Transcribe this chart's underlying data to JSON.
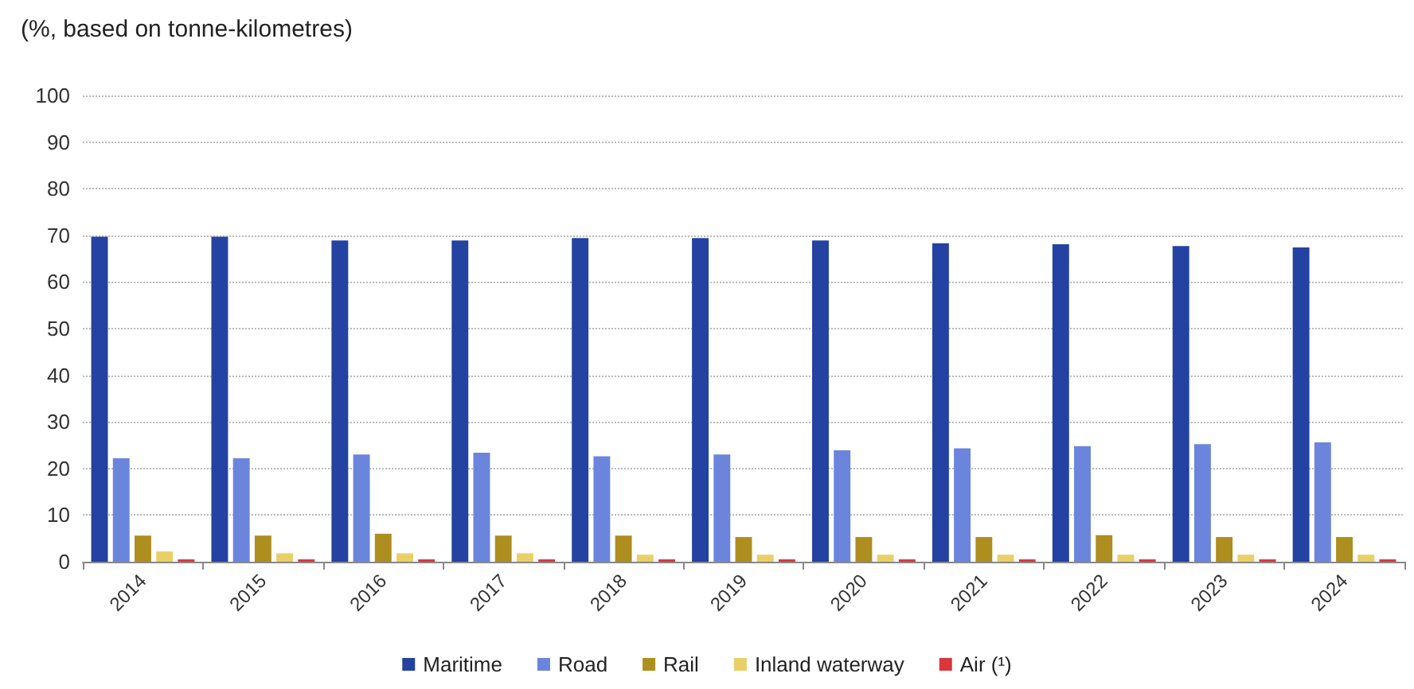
{
  "chart_data": {
    "type": "bar",
    "title": "(%, based on tonne-kilometres)",
    "categories": [
      "2014",
      "2015",
      "2016",
      "2017",
      "2018",
      "2019",
      "2020",
      "2021",
      "2022",
      "2023",
      "2024"
    ],
    "series": [
      {
        "name": "Maritime",
        "color": "#2342a2",
        "values": [
          69.7,
          69.7,
          68.9,
          68.9,
          69.4,
          69.4,
          68.9,
          68.3,
          68.1,
          67.7,
          67.4
        ]
      },
      {
        "name": "Road",
        "color": "#6b85dd",
        "values": [
          22.2,
          22.2,
          23.0,
          23.4,
          22.6,
          23.0,
          23.9,
          24.3,
          24.8,
          25.2,
          25.6
        ]
      },
      {
        "name": "Rail",
        "color": "#ae8e1e",
        "values": [
          5.6,
          5.6,
          6.0,
          5.6,
          5.6,
          5.3,
          5.3,
          5.3,
          5.7,
          5.3,
          5.3
        ]
      },
      {
        "name": "Inland waterway",
        "color": "#e9cf67",
        "values": [
          2.2,
          1.8,
          1.8,
          1.8,
          1.5,
          1.5,
          1.5,
          1.5,
          1.5,
          1.5,
          1.5
        ]
      },
      {
        "name": "Air (¹)",
        "color": "#d9363e",
        "values": [
          0.5,
          0.5,
          0.5,
          0.5,
          0.5,
          0.5,
          0.5,
          0.5,
          0.5,
          0.5,
          0.5
        ]
      }
    ],
    "ylim": [
      0,
      100
    ],
    "yticks": [
      0,
      10,
      20,
      30,
      40,
      50,
      60,
      70,
      80,
      90,
      100
    ],
    "grid": "y",
    "legend": "bottom"
  }
}
